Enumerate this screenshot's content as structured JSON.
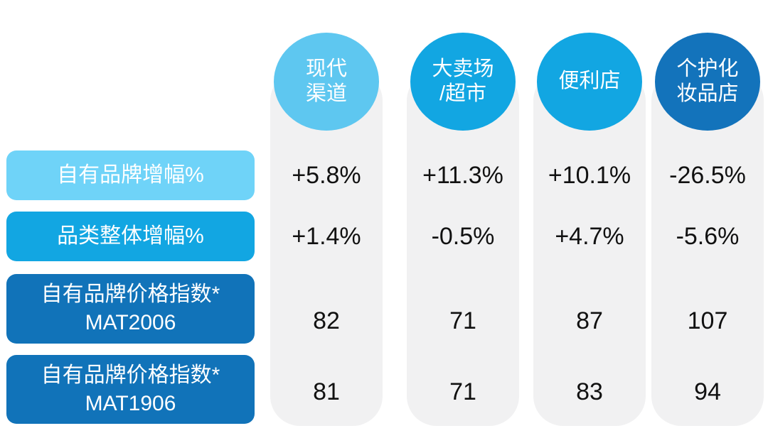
{
  "chart_data": {
    "type": "table",
    "title": "",
    "columns": [
      "现代渠道",
      "大卖场/超市",
      "便利店",
      "个护化妆品店"
    ],
    "rows": [
      "自有品牌增幅%",
      "品类整体增幅%",
      "自有品牌价格指数* MAT2006",
      "自有品牌价格指数* MAT1906"
    ],
    "cells": [
      [
        "+5.8%",
        "+11.3%",
        "+10.1%",
        "-26.5%"
      ],
      [
        "+1.4%",
        "-0.5%",
        "+4.7%",
        "-5.6%"
      ],
      [
        "82",
        "71",
        "87",
        "107"
      ],
      [
        "81",
        "71",
        "83",
        "94"
      ]
    ]
  },
  "table": {
    "column_bg_color": "#F1F1F2",
    "rows": [
      {
        "label": "自有品牌增幅%",
        "bar_color": "#6FD3F8"
      },
      {
        "label": "品类整体增幅%",
        "bar_color": "#12A6E2"
      },
      {
        "label": "自有品牌价格指数*",
        "sublabel": "MAT2006",
        "bar_color": "#1173B9"
      },
      {
        "label": "自有品牌价格指数*",
        "sublabel": "MAT1906",
        "bar_color": "#1173B9"
      }
    ],
    "columns": [
      {
        "label_lines": [
          "现代",
          "渠道"
        ],
        "circle_color": "#5EC7F0",
        "values": [
          "+5.8%",
          "+1.4%",
          "82",
          "81"
        ]
      },
      {
        "label_lines": [
          "大卖场",
          "/超市"
        ],
        "circle_color": "#12A6E2",
        "values": [
          "+11.3%",
          "-0.5%",
          "71",
          "71"
        ]
      },
      {
        "label_lines": [
          "便利店"
        ],
        "circle_color": "#12A6E2",
        "values": [
          "+10.1%",
          "+4.7%",
          "87",
          "83"
        ]
      },
      {
        "label_lines": [
          "个护化",
          "妆品店"
        ],
        "circle_color": "#1373BB",
        "values": [
          "-26.5%",
          "-5.6%",
          "107",
          "94"
        ]
      }
    ]
  }
}
